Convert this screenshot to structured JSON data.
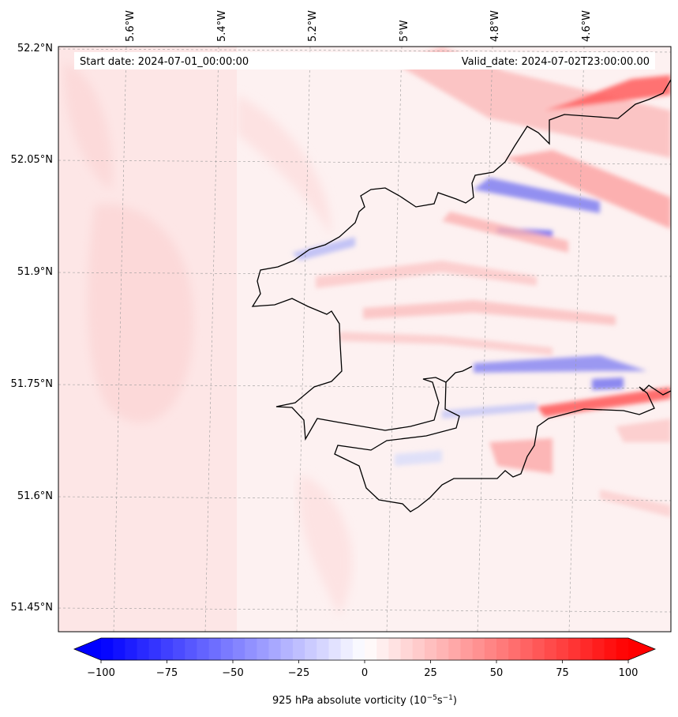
{
  "header": {
    "start_label": "Start date: 2024-07-01_00:00:00",
    "valid_label": "Valid_date: 2024-07-02T23:00:00.00"
  },
  "map": {
    "lon_labels": [
      "5.6°W",
      "5.4°W",
      "5.2°W",
      "5°W",
      "4.8°W",
      "4.6°W"
    ],
    "lat_labels": [
      "52.2°N",
      "52.05°N",
      "51.9°N",
      "51.75°N",
      "51.6°N",
      "51.45°N"
    ],
    "field": "925 hPa absolute vorticity",
    "coastline_color": "#000000"
  },
  "colorbar": {
    "ticks": [
      "−100",
      "−75",
      "−50",
      "−25",
      "0",
      "25",
      "50",
      "75",
      "100"
    ],
    "label_main": "925 hPa absolute vorticity (10",
    "label_exp1": "−5",
    "label_mid": "s",
    "label_exp2": "−1",
    "label_end": ")",
    "low_color": "#0000ff",
    "high_color": "#ff0000",
    "mid_color": "#ffffff",
    "min": -100,
    "max": 100,
    "levels": 44
  }
}
